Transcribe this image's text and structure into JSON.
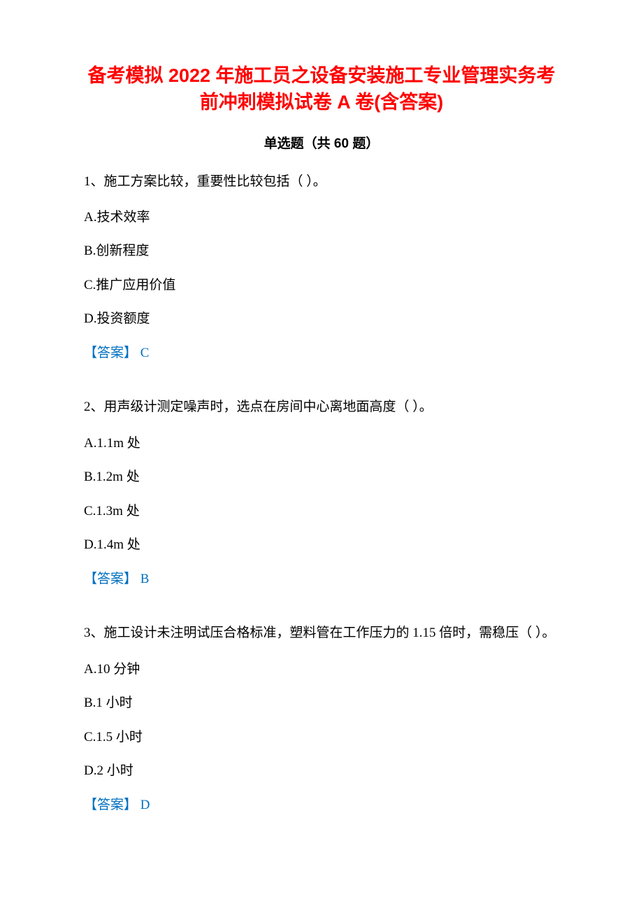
{
  "title": "备考模拟 2022 年施工员之设备安装施工专业管理实务考前冲刺模拟试卷 A 卷(含答案)",
  "subtitle": "单选题（共 60 题）",
  "answer_label": "【答案】 ",
  "colors": {
    "title": "#ff0000",
    "text": "#000000",
    "answer": "#0070c0",
    "background": "#ffffff"
  },
  "questions": [
    {
      "stem": "1、施工方案比较，重要性比较包括（ ）。",
      "choices": [
        "A.技术效率",
        "B.创新程度",
        "C.推广应用价值",
        "D.投资额度"
      ],
      "answer": "C"
    },
    {
      "stem": "2、用声级计测定噪声时，选点在房间中心离地面高度（ ）。",
      "choices": [
        "A.1.1m 处",
        "B.1.2m 处",
        "C.1.3m 处",
        "D.1.4m 处"
      ],
      "answer": "B"
    },
    {
      "stem": "3、施工设计未注明试压合格标准，塑料管在工作压力的 1.15 倍时，需稳压（ ）。",
      "choices": [
        "A.10 分钟",
        "B.1 小时",
        "C.1.5 小时",
        "D.2 小时"
      ],
      "answer": "D"
    }
  ]
}
